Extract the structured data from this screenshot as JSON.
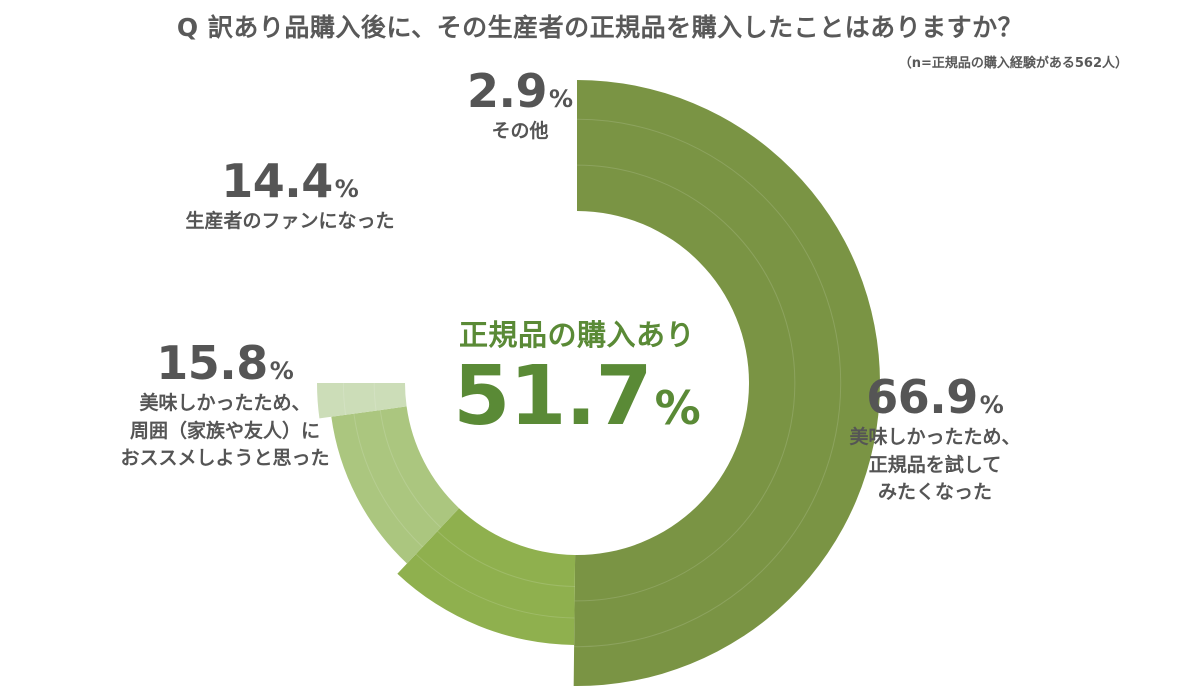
{
  "title": "Q 訳あり品購入後に、その生産者の正規品を購入したことはありますか？",
  "sample_note": "（n=正規品の購入経験がある562人）",
  "center": {
    "label": "正規品の購入あり",
    "value": "51.7",
    "unit": "%"
  },
  "chart_data": {
    "type": "pie",
    "title": "Q 訳あり品購入後に、その生産者の正規品を購入したことはありますか？",
    "unit": "%",
    "slices": [
      {
        "label": "美味しかったため、正規品を試してみたくなった",
        "display_label": "美味しかったため、\n正規品を試して\nみたくなった",
        "value": 66.9,
        "value_label": "66.9",
        "color": "#7a9444"
      },
      {
        "label": "美味しかったため、周囲（家族や友人）におススメしようと思った",
        "display_label": "美味しかったため、\n周囲（家族や友人）に\nおススメしようと思った",
        "value": 15.8,
        "value_label": "15.8",
        "color": "#8fb04e"
      },
      {
        "label": "生産者のファンになった",
        "display_label": "生産者のファンになった",
        "value": 14.4,
        "value_label": "14.4",
        "color": "#abc67f"
      },
      {
        "label": "その他",
        "display_label": "その他",
        "value": 2.9,
        "value_label": "2.9",
        "color": "#ccddb8"
      }
    ]
  }
}
